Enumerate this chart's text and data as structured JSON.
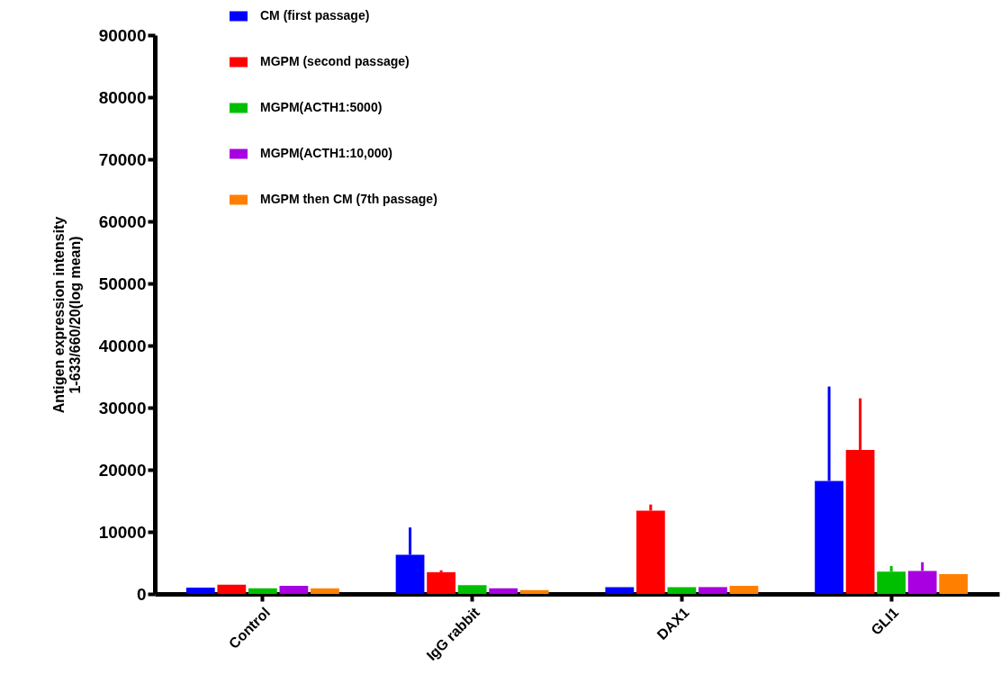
{
  "chart_data": {
    "type": "bar",
    "ylabel": "Antigen expression intensity\n1-633/660/20(log mean)",
    "categories": [
      "Control",
      "IgG rabbit",
      "DAX1",
      "GLI1"
    ],
    "ylim": [
      0,
      90000
    ],
    "yticks": [
      0,
      10000,
      20000,
      30000,
      40000,
      50000,
      60000,
      70000,
      80000,
      90000
    ],
    "grid": false,
    "legend": "top left",
    "series": [
      {
        "name": "CM (first passage)",
        "color": "#0000ff",
        "values": [
          1000,
          6300,
          1100,
          18200
        ],
        "errors": [
          null,
          [
            6300,
            10700
          ],
          null,
          [
            18200,
            33400
          ]
        ]
      },
      {
        "name": "MGPM (second passage)",
        "color": "#ff0000",
        "values": [
          1500,
          3500,
          13400,
          23200
        ],
        "errors": [
          null,
          [
            3500,
            3800
          ],
          [
            13400,
            14400
          ],
          [
            23200,
            31500
          ]
        ]
      },
      {
        "name": "MGPM(ACTH1:5000)",
        "color": "#00bf00",
        "values": [
          900,
          1400,
          1100,
          3600
        ],
        "errors": [
          null,
          null,
          null,
          [
            3600,
            4500
          ]
        ]
      },
      {
        "name": "MGPM(ACTH1:10,000)",
        "color": "#a800e0",
        "values": [
          1300,
          900,
          1100,
          3700
        ],
        "errors": [
          null,
          null,
          null,
          [
            3700,
            5100
          ]
        ]
      },
      {
        "name": "MGPM then CM (7th passage)",
        "color": "#ff8000",
        "values": [
          900,
          600,
          1300,
          3200
        ],
        "errors": [
          null,
          null,
          null,
          null
        ]
      }
    ]
  }
}
